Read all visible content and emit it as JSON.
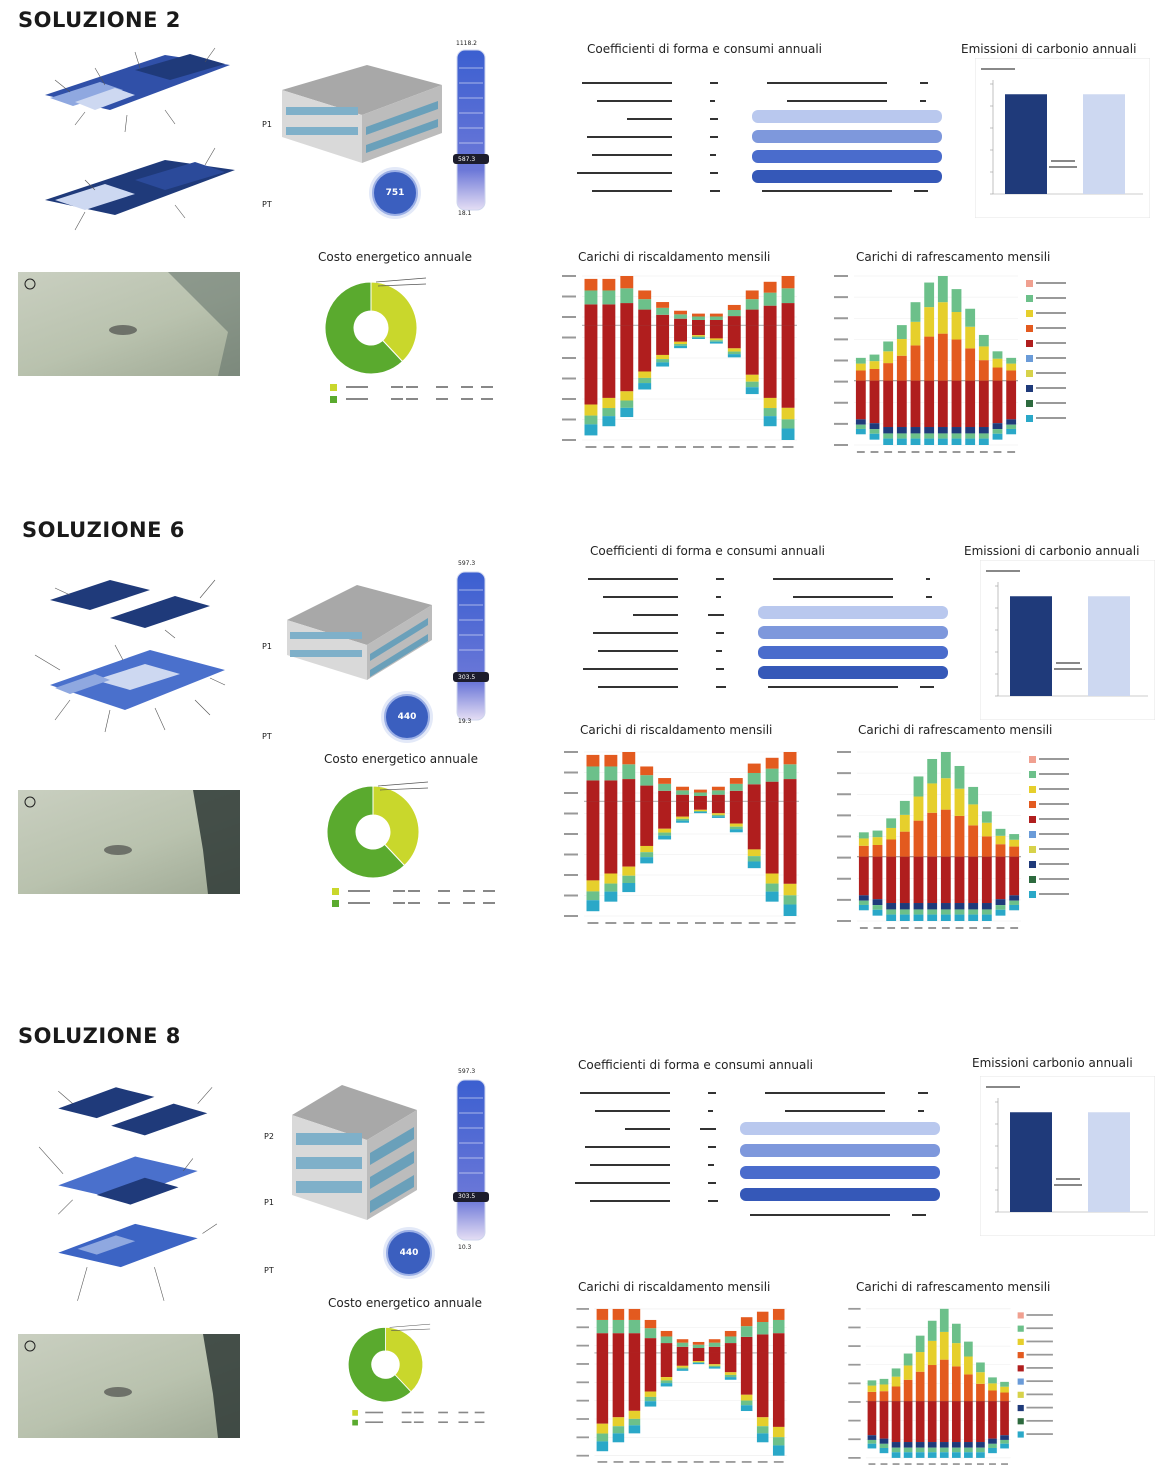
{
  "colors": {
    "navy": "#1f3a7a",
    "blue": "#3c64c4",
    "light_blue": "#cdd8f1",
    "lime": "#c9d72c",
    "green": "#5aaa2e",
    "heat_red": "#b01e1e",
    "heat_orange": "#e35a1f",
    "heat_green": "#6cc08a",
    "heat_yellow": "#e6cf2c",
    "heat_cyan": "#2aa8c8"
  },
  "solutions": [
    {
      "title": "SOLUZIONE 2",
      "titles": {
        "coeff": "Coefficienti di forma e consumi annuali",
        "emissions": "Emissioni di carbonio annuali",
        "cost": "Costo energetico annuale",
        "heating": "Carichi di riscaldamento mensili",
        "cooling": "Carichi di rafrescamento mensili"
      },
      "floors": [
        "P1",
        "PT"
      ],
      "badge": "751",
      "thermo": {
        "top": "1118.2",
        "mid": "587.3",
        "bottom": "18.1"
      },
      "chart_data": [
        {
          "type": "pie",
          "title": "Costo energetico annuale",
          "values": [
            38,
            62
          ],
          "colors": [
            "#c9d72c",
            "#5aaa2e"
          ]
        },
        {
          "type": "bar",
          "title": "Emissioni di carbonio annuali",
          "values": [
            95,
            95
          ],
          "colors": [
            "#1f3a7a",
            "#cdd8f1"
          ]
        },
        {
          "type": "bar",
          "title": "Carichi di riscaldamento mensili",
          "values_pos": [
            16,
            16,
            17,
            12,
            8,
            5,
            4,
            4,
            7,
            12,
            15,
            17
          ],
          "values_neg": [
            -48,
            -44,
            -40,
            -28,
            -18,
            -10,
            -6,
            -8,
            -14,
            -30,
            -44,
            -50
          ]
        },
        {
          "type": "bar",
          "title": "Carichi di rafrescamento mensili",
          "values_pos": [
            14,
            16,
            24,
            34,
            48,
            60,
            64,
            56,
            44,
            28,
            18,
            14
          ],
          "values_neg": [
            -10,
            -11,
            -12,
            -12,
            -12,
            -12,
            -12,
            -12,
            -12,
            -12,
            -11,
            -10
          ]
        }
      ]
    },
    {
      "title": "SOLUZIONE 6",
      "titles": {
        "coeff": "Coefficienti di forma e consumi annuali",
        "emissions": "Emissioni di carbonio annuali",
        "cost": "Costo energetico annuale",
        "heating": "Carichi di riscaldamento mensili",
        "cooling": "Carichi di rafrescamento mensili"
      },
      "floors": [
        "P1",
        "PT"
      ],
      "badge": "440",
      "thermo": {
        "top": "597.3",
        "mid": "303.5",
        "bottom": "19.3"
      },
      "chart_data": [
        {
          "type": "pie",
          "title": "Costo energetico annuale",
          "values": [
            38,
            62
          ],
          "colors": [
            "#c9d72c",
            "#5aaa2e"
          ]
        },
        {
          "type": "bar",
          "title": "Emissioni di carbonio annuali",
          "values": [
            95,
            95
          ],
          "colors": [
            "#1f3a7a",
            "#cdd8f1"
          ]
        },
        {
          "type": "bar",
          "title": "Carichi di riscaldamento mensili",
          "values_pos": [
            16,
            16,
            17,
            12,
            8,
            5,
            4,
            5,
            8,
            13,
            15,
            17
          ],
          "values_neg": [
            -46,
            -42,
            -38,
            -26,
            -16,
            -9,
            -5,
            -7,
            -13,
            -28,
            -42,
            -48
          ]
        },
        {
          "type": "bar",
          "title": "Carichi di rafrescamento mensili",
          "values_pos": [
            14,
            15,
            22,
            32,
            46,
            56,
            60,
            52,
            40,
            26,
            16,
            13
          ],
          "values_neg": [
            -10,
            -11,
            -12,
            -12,
            -12,
            -12,
            -12,
            -12,
            -12,
            -12,
            -11,
            -10
          ]
        }
      ]
    },
    {
      "title": "SOLUZIONE 8",
      "titles": {
        "coeff": "Coefficienti di forma e consumi annuali",
        "emissions": "Emissioni carbonio annuali",
        "cost": "Costo energetico annuale",
        "heating": "Carichi di riscaldamento mensili",
        "cooling": "Carichi di rafrescamento mensili"
      },
      "floors": [
        "P2",
        "P1",
        "PT"
      ],
      "badge": "440",
      "thermo": {
        "top": "597.3",
        "mid": "303.5",
        "bottom": "10.3"
      },
      "chart_data": [
        {
          "type": "pie",
          "title": "Costo energetico annuale",
          "values": [
            38,
            62
          ],
          "colors": [
            "#c9d72c",
            "#5aaa2e"
          ]
        },
        {
          "type": "bar",
          "title": "Emissioni carbonio annuali",
          "values": [
            95,
            95
          ],
          "colors": [
            "#1f3a7a",
            "#cdd8f1"
          ]
        },
        {
          "type": "bar",
          "title": "Carichi di riscaldamento mensili",
          "values_pos": [
            16,
            16,
            16,
            12,
            8,
            5,
            4,
            5,
            8,
            13,
            15,
            16
          ],
          "values_neg": [
            -44,
            -40,
            -36,
            -24,
            -15,
            -8,
            -5,
            -7,
            -12,
            -26,
            -40,
            -46
          ]
        },
        {
          "type": "bar",
          "title": "Carichi di rafrescamento mensili",
          "values_pos": [
            14,
            15,
            22,
            32,
            44,
            54,
            62,
            52,
            40,
            26,
            16,
            13
          ],
          "values_neg": [
            -10,
            -11,
            -12,
            -12,
            -12,
            -12,
            -12,
            -12,
            -12,
            -12,
            -11,
            -10
          ]
        }
      ]
    }
  ]
}
